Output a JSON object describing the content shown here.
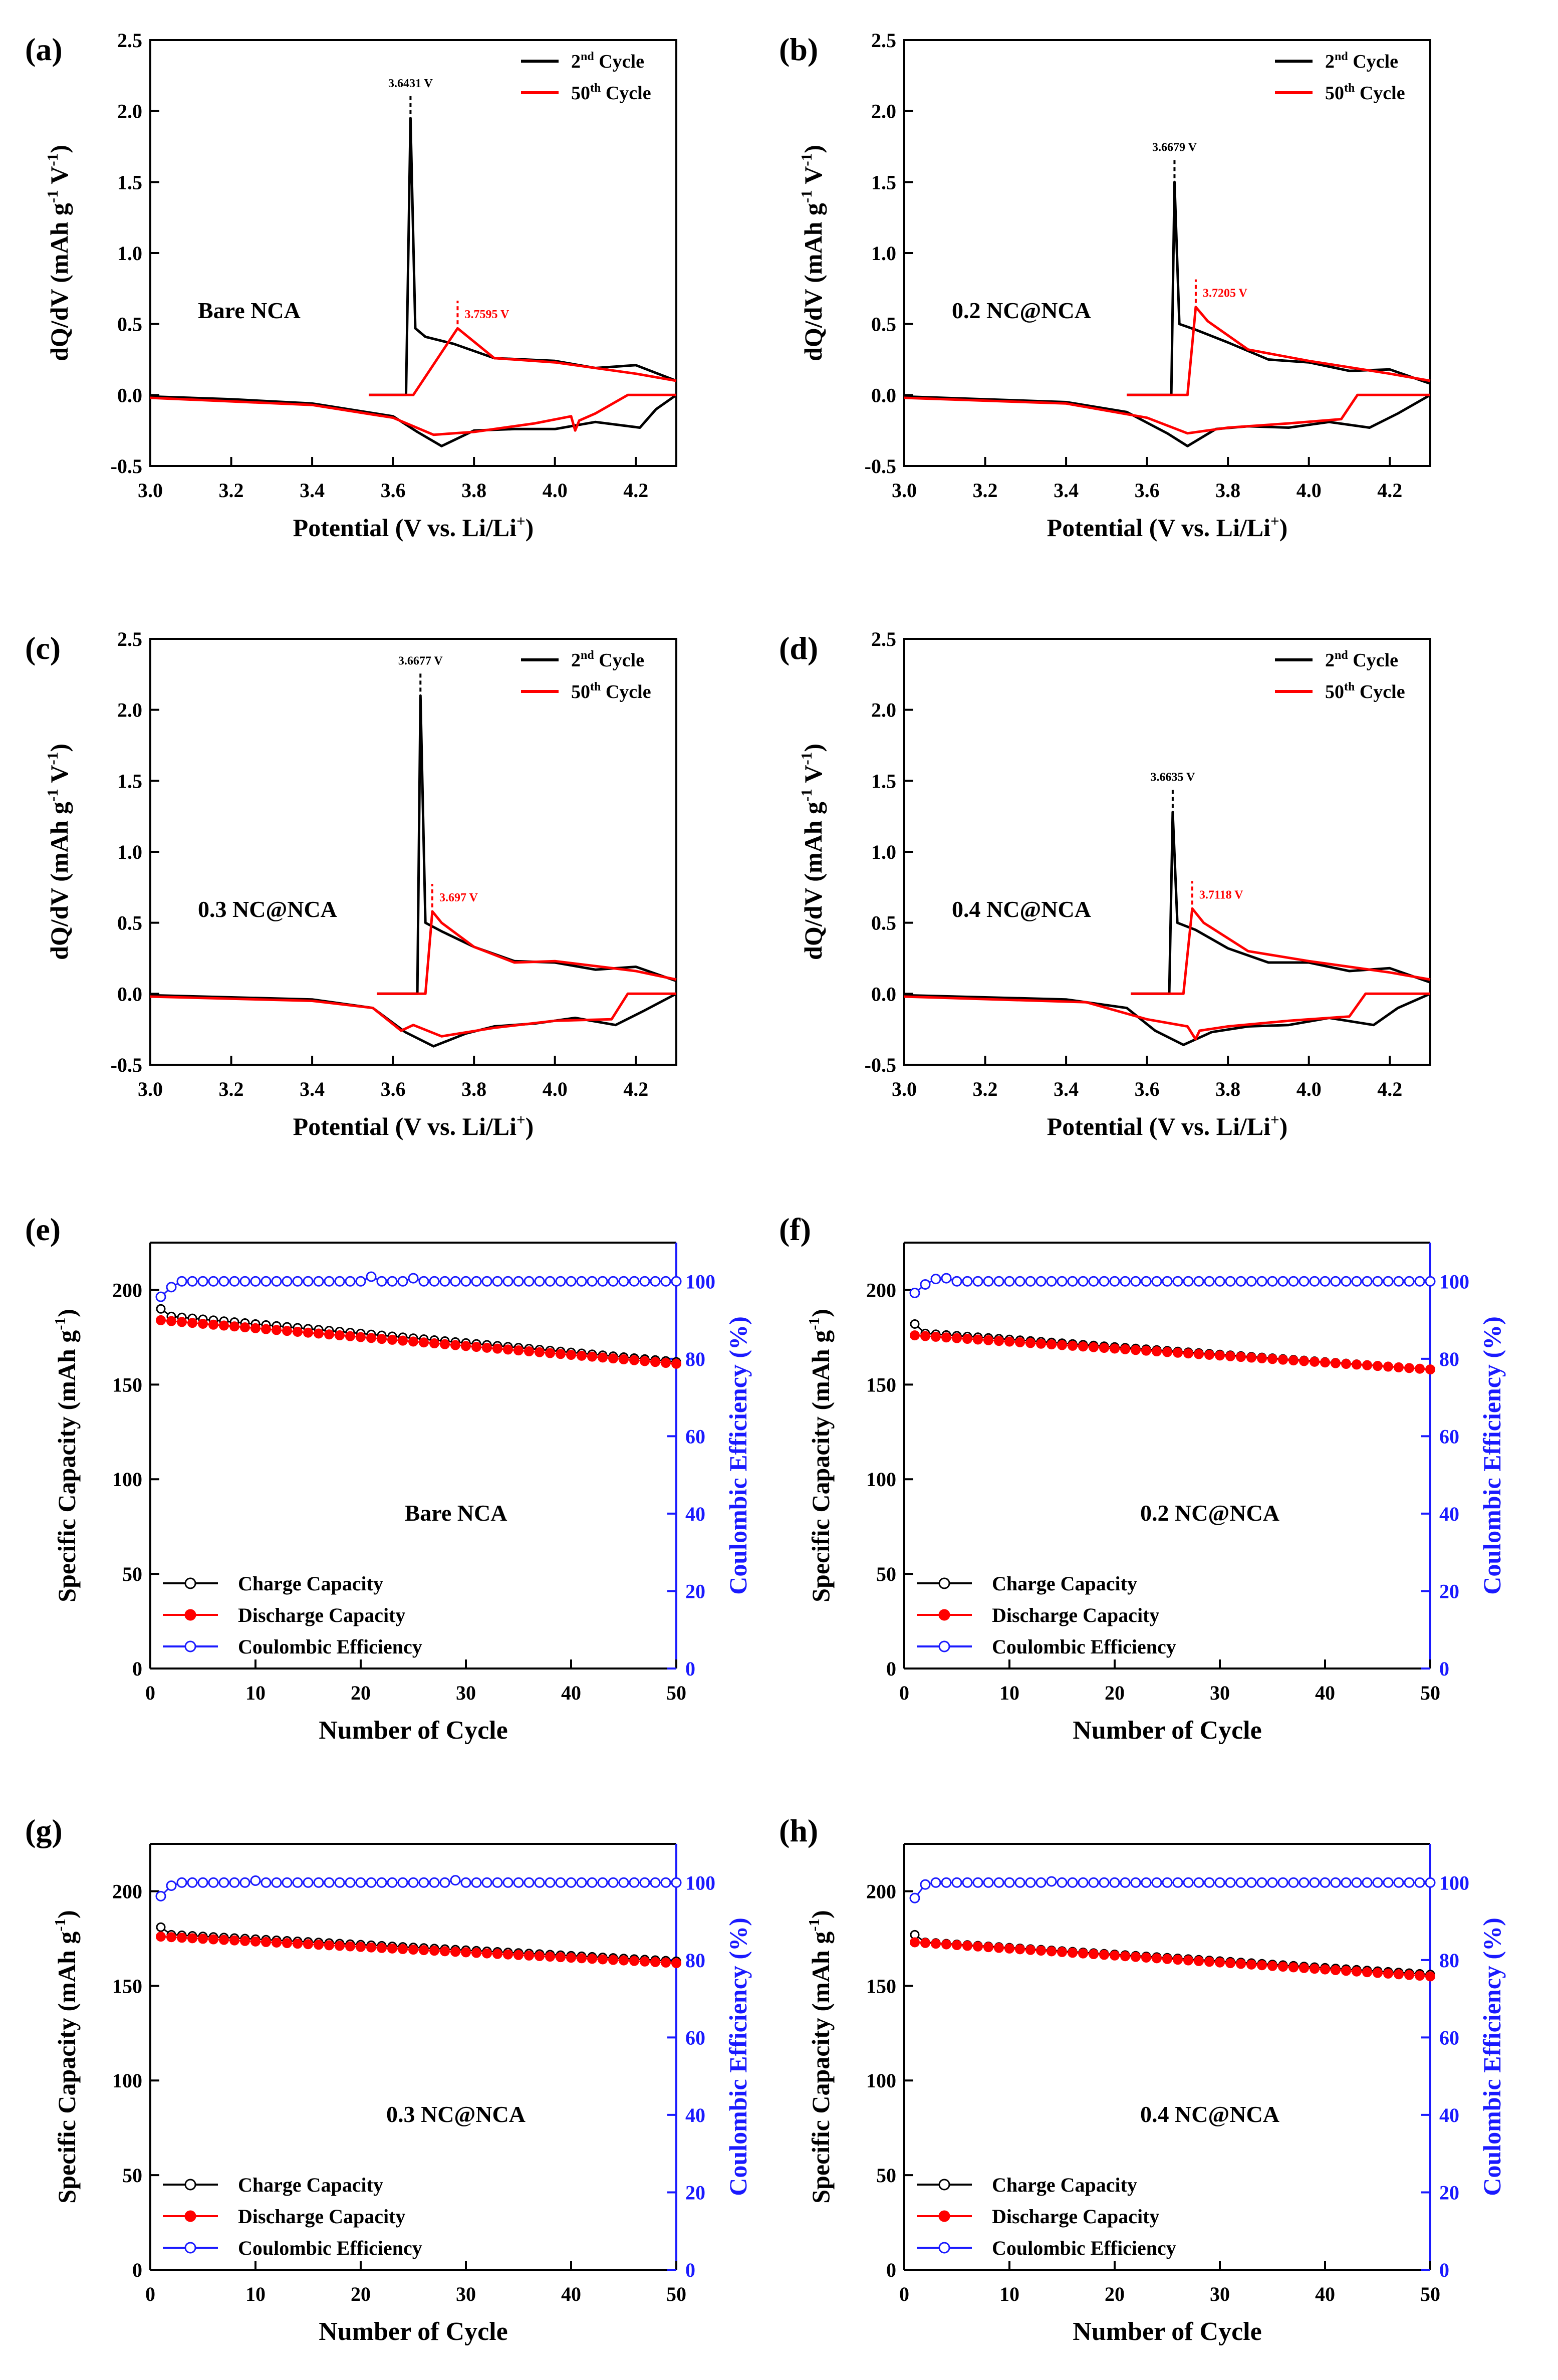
{
  "colors": {
    "cycle2": "#000000",
    "cycle50": "#ff0000",
    "ce": "#1a1aff",
    "axis": "#000000"
  },
  "cv_axes": {
    "xlabel": "Potential (V vs. Li/Li",
    "xlabel_sup": "+",
    "xlabel_close": ")",
    "ylabel": "dQ/dV (mAh g",
    "ylabel_sup1": "-1",
    "ylabel_mid": " V",
    "ylabel_sup2": "-1",
    "ylabel_close": ")",
    "xlim": [
      3.0,
      4.3
    ],
    "ylim": [
      -0.5,
      2.5
    ],
    "xticks": [
      "3.0",
      "3.2",
      "3.4",
      "3.6",
      "3.8",
      "4.0",
      "4.2"
    ],
    "yticks": [
      "-0.5",
      "0.0",
      "0.5",
      "1.0",
      "1.5",
      "2.0",
      "2.5"
    ],
    "legend": [
      {
        "num": "2",
        "sup": "nd",
        "rest": " Cycle"
      },
      {
        "num": "50",
        "sup": "th",
        "rest": " Cycle"
      }
    ]
  },
  "cycle_axes": {
    "xlabel": "Number of Cycle",
    "ylabel_left": "Specific Capacity (mAh g",
    "ylabel_left_sup": "-1",
    "ylabel_left_close": ")",
    "ylabel_right": "Coulombic Efficiency (%)",
    "xlim": [
      0,
      50
    ],
    "ylim_left": [
      0,
      225
    ],
    "ylim_right": [
      0,
      110
    ],
    "xticks": [
      "0",
      "10",
      "20",
      "30",
      "40",
      "50"
    ],
    "yticks_left": [
      "0",
      "50",
      "100",
      "150",
      "200"
    ],
    "yticks_right": [
      "0",
      "20",
      "40",
      "60",
      "80",
      "100"
    ],
    "legend": [
      "Charge Capacity",
      "Discharge Capacity",
      "Coulombic Efficiency"
    ]
  },
  "chart_data": [
    {
      "panel": "(a)",
      "type": "line",
      "label": "Bare NCA",
      "peak2": {
        "v": 3.6431,
        "h": 1.95,
        "text": "3.6431 V"
      },
      "peak50": {
        "v": 3.7595,
        "h": 0.47,
        "text": "3.7595 V"
      },
      "cycle2_charge": [
        [
          3.54,
          0
        ],
        [
          3.632,
          0
        ],
        [
          3.6431,
          1.95
        ],
        [
          3.655,
          0.47
        ],
        [
          3.68,
          0.41
        ],
        [
          3.75,
          0.36
        ],
        [
          3.85,
          0.26
        ],
        [
          4.0,
          0.24
        ],
        [
          4.1,
          0.19
        ],
        [
          4.2,
          0.21
        ],
        [
          4.3,
          0.1
        ]
      ],
      "cycle2_discharge": [
        [
          4.3,
          0.0
        ],
        [
          4.25,
          -0.1
        ],
        [
          4.21,
          -0.23
        ],
        [
          4.1,
          -0.19
        ],
        [
          4.0,
          -0.24
        ],
        [
          3.9,
          -0.24
        ],
        [
          3.8,
          -0.25
        ],
        [
          3.72,
          -0.36
        ],
        [
          3.66,
          -0.26
        ],
        [
          3.6,
          -0.15
        ],
        [
          3.4,
          -0.06
        ],
        [
          3.2,
          -0.03
        ],
        [
          3.0,
          -0.01
        ]
      ],
      "cycle50_charge": [
        [
          3.54,
          0
        ],
        [
          3.65,
          0
        ],
        [
          3.72,
          0.3
        ],
        [
          3.7595,
          0.47
        ],
        [
          3.85,
          0.26
        ],
        [
          4.0,
          0.23
        ],
        [
          4.2,
          0.15
        ],
        [
          4.3,
          0.1
        ]
      ],
      "cycle50_discharge": [
        [
          4.3,
          0.0
        ],
        [
          4.18,
          0.0
        ],
        [
          4.1,
          -0.13
        ],
        [
          4.06,
          -0.18
        ],
        [
          4.05,
          -0.25
        ],
        [
          4.04,
          -0.15
        ],
        [
          3.95,
          -0.2
        ],
        [
          3.8,
          -0.26
        ],
        [
          3.7,
          -0.28
        ],
        [
          3.6,
          -0.16
        ],
        [
          3.4,
          -0.07
        ],
        [
          3.0,
          -0.02
        ]
      ]
    },
    {
      "panel": "(b)",
      "type": "line",
      "label": "0.2 NC@NCA",
      "peak2": {
        "v": 3.6679,
        "h": 1.5,
        "text": "3.6679 V"
      },
      "peak50": {
        "v": 3.7205,
        "h": 0.62,
        "text": "3.7205 V"
      },
      "cycle2_charge": [
        [
          3.55,
          0
        ],
        [
          3.66,
          0
        ],
        [
          3.6679,
          1.5
        ],
        [
          3.68,
          0.5
        ],
        [
          3.72,
          0.46
        ],
        [
          3.8,
          0.37
        ],
        [
          3.9,
          0.25
        ],
        [
          4.0,
          0.23
        ],
        [
          4.1,
          0.17
        ],
        [
          4.2,
          0.18
        ],
        [
          4.3,
          0.08
        ]
      ],
      "cycle2_discharge": [
        [
          4.3,
          0.0
        ],
        [
          4.22,
          -0.13
        ],
        [
          4.15,
          -0.23
        ],
        [
          4.05,
          -0.19
        ],
        [
          3.95,
          -0.23
        ],
        [
          3.85,
          -0.22
        ],
        [
          3.77,
          -0.24
        ],
        [
          3.7,
          -0.36
        ],
        [
          3.65,
          -0.27
        ],
        [
          3.55,
          -0.12
        ],
        [
          3.4,
          -0.05
        ],
        [
          3.0,
          -0.01
        ]
      ],
      "cycle50_charge": [
        [
          3.55,
          0
        ],
        [
          3.7,
          0
        ],
        [
          3.7205,
          0.62
        ],
        [
          3.75,
          0.52
        ],
        [
          3.85,
          0.32
        ],
        [
          4.0,
          0.24
        ],
        [
          4.2,
          0.15
        ],
        [
          4.3,
          0.1
        ]
      ],
      "cycle50_discharge": [
        [
          4.3,
          0.0
        ],
        [
          4.12,
          0.0
        ],
        [
          4.08,
          -0.17
        ],
        [
          3.95,
          -0.2
        ],
        [
          3.8,
          -0.23
        ],
        [
          3.7,
          -0.27
        ],
        [
          3.6,
          -0.16
        ],
        [
          3.4,
          -0.06
        ],
        [
          3.0,
          -0.02
        ]
      ]
    },
    {
      "panel": "(c)",
      "type": "line",
      "label": "0.3 NC@NCA",
      "peak2": {
        "v": 3.6677,
        "h": 2.1,
        "text": "3.6677 V"
      },
      "peak50": {
        "v": 3.697,
        "h": 0.58,
        "text": "3.697 V"
      },
      "cycle2_charge": [
        [
          3.56,
          0
        ],
        [
          3.66,
          0
        ],
        [
          3.6677,
          2.1
        ],
        [
          3.68,
          0.5
        ],
        [
          3.72,
          0.44
        ],
        [
          3.8,
          0.33
        ],
        [
          3.9,
          0.23
        ],
        [
          4.0,
          0.22
        ],
        [
          4.1,
          0.17
        ],
        [
          4.2,
          0.19
        ],
        [
          4.3,
          0.09
        ]
      ],
      "cycle2_discharge": [
        [
          4.3,
          0.0
        ],
        [
          4.22,
          -0.12
        ],
        [
          4.15,
          -0.22
        ],
        [
          4.05,
          -0.17
        ],
        [
          3.95,
          -0.21
        ],
        [
          3.85,
          -0.23
        ],
        [
          3.78,
          -0.28
        ],
        [
          3.7,
          -0.37
        ],
        [
          3.63,
          -0.27
        ],
        [
          3.55,
          -0.1
        ],
        [
          3.4,
          -0.04
        ],
        [
          3.0,
          -0.01
        ]
      ],
      "cycle50_charge": [
        [
          3.56,
          0
        ],
        [
          3.68,
          0
        ],
        [
          3.697,
          0.58
        ],
        [
          3.72,
          0.5
        ],
        [
          3.8,
          0.33
        ],
        [
          3.9,
          0.22
        ],
        [
          4.0,
          0.23
        ],
        [
          4.2,
          0.16
        ],
        [
          4.3,
          0.1
        ]
      ],
      "cycle50_discharge": [
        [
          4.3,
          0.0
        ],
        [
          4.18,
          0.0
        ],
        [
          4.14,
          -0.18
        ],
        [
          4.0,
          -0.19
        ],
        [
          3.85,
          -0.24
        ],
        [
          3.72,
          -0.3
        ],
        [
          3.65,
          -0.22
        ],
        [
          3.62,
          -0.26
        ],
        [
          3.55,
          -0.1
        ],
        [
          3.4,
          -0.05
        ],
        [
          3.0,
          -0.02
        ]
      ]
    },
    {
      "panel": "(d)",
      "type": "line",
      "label": "0.4 NC@NCA",
      "peak2": {
        "v": 3.6635,
        "h": 1.28,
        "text": "3.6635 V"
      },
      "peak50": {
        "v": 3.7118,
        "h": 0.6,
        "text": "3.7118 V"
      },
      "cycle2_charge": [
        [
          3.56,
          0
        ],
        [
          3.655,
          0
        ],
        [
          3.6635,
          1.28
        ],
        [
          3.675,
          0.5
        ],
        [
          3.72,
          0.45
        ],
        [
          3.8,
          0.32
        ],
        [
          3.9,
          0.22
        ],
        [
          4.0,
          0.22
        ],
        [
          4.1,
          0.16
        ],
        [
          4.2,
          0.18
        ],
        [
          4.3,
          0.08
        ]
      ],
      "cycle2_discharge": [
        [
          4.3,
          0.0
        ],
        [
          4.22,
          -0.1
        ],
        [
          4.16,
          -0.22
        ],
        [
          4.05,
          -0.17
        ],
        [
          3.95,
          -0.22
        ],
        [
          3.85,
          -0.23
        ],
        [
          3.76,
          -0.27
        ],
        [
          3.69,
          -0.36
        ],
        [
          3.62,
          -0.26
        ],
        [
          3.55,
          -0.1
        ],
        [
          3.4,
          -0.04
        ],
        [
          3.0,
          -0.01
        ]
      ],
      "cycle50_charge": [
        [
          3.56,
          0
        ],
        [
          3.69,
          0
        ],
        [
          3.7118,
          0.6
        ],
        [
          3.74,
          0.5
        ],
        [
          3.85,
          0.3
        ],
        [
          4.0,
          0.23
        ],
        [
          4.2,
          0.15
        ],
        [
          4.3,
          0.1
        ]
      ],
      "cycle50_discharge": [
        [
          4.3,
          0.0
        ],
        [
          4.14,
          0.0
        ],
        [
          4.1,
          -0.16
        ],
        [
          3.95,
          -0.19
        ],
        [
          3.8,
          -0.23
        ],
        [
          3.73,
          -0.26
        ],
        [
          3.72,
          -0.32
        ],
        [
          3.7,
          -0.23
        ],
        [
          3.6,
          -0.18
        ],
        [
          3.45,
          -0.06
        ],
        [
          3.0,
          -0.02
        ]
      ]
    },
    {
      "panel": "(e)",
      "type": "scatter",
      "label": "Bare NCA",
      "charge": {
        "c1": 190,
        "start": 186,
        "end": 162
      },
      "discharge": {
        "c1": 184,
        "start": 184,
        "end": 161
      },
      "ce": {
        "c1": 96,
        "c2": 98.5,
        "steady": 100,
        "bumps": [
          [
            21,
            101.2
          ],
          [
            25,
            100.8
          ]
        ]
      }
    },
    {
      "panel": "(f)",
      "type": "scatter",
      "label": "0.2 NC@NCA",
      "charge": {
        "c1": 182,
        "start": 177,
        "end": 158
      },
      "discharge": {
        "c1": 176,
        "start": 176,
        "end": 158
      },
      "ce": {
        "c1": 97,
        "c2": 99.2,
        "steady": 100,
        "bumps": [
          [
            3,
            100.6
          ],
          [
            4,
            100.8
          ]
        ]
      }
    },
    {
      "panel": "(g)",
      "type": "scatter",
      "label": "0.3 NC@NCA",
      "charge": {
        "c1": 181,
        "start": 177,
        "end": 163
      },
      "discharge": {
        "c1": 176,
        "start": 176,
        "end": 162
      },
      "ce": {
        "c1": 96.5,
        "c2": 99.2,
        "steady": 100,
        "bumps": [
          [
            10,
            100.5
          ],
          [
            29,
            100.6
          ]
        ]
      }
    },
    {
      "panel": "(h)",
      "type": "scatter",
      "label": "0.4 NC@NCA",
      "charge": {
        "c1": 177,
        "start": 173,
        "end": 156
      },
      "discharge": {
        "c1": 173,
        "start": 173,
        "end": 155
      },
      "ce": {
        "c1": 96,
        "c2": 99.5,
        "steady": 100,
        "bumps": [
          [
            14,
            100.3
          ]
        ]
      }
    }
  ]
}
